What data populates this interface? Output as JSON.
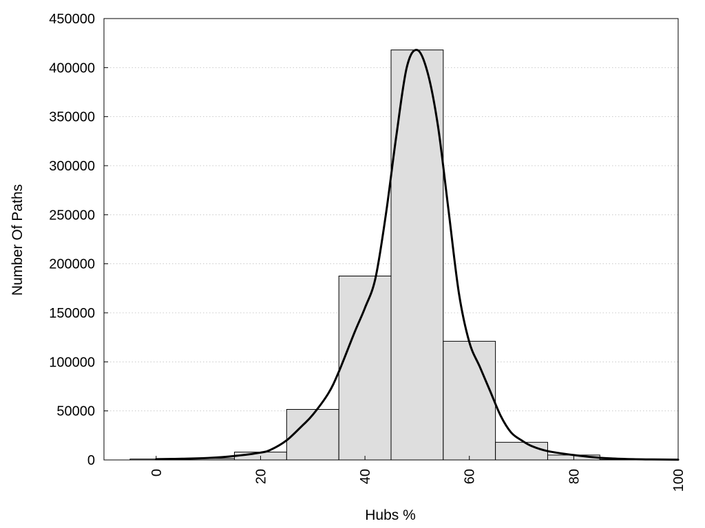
{
  "chart_data": {
    "type": "bar",
    "xlabel": "Hubs %",
    "ylabel": "Number Of Paths",
    "xlim": [
      -10,
      100
    ],
    "ylim": [
      0,
      450000
    ],
    "x_ticks": [
      0,
      20,
      40,
      60,
      80,
      100
    ],
    "y_ticks": [
      0,
      50000,
      100000,
      150000,
      200000,
      250000,
      300000,
      350000,
      400000,
      450000
    ],
    "grid": "horizontal dotted",
    "bar_fill": "#dedede",
    "bar_edge": "#000000",
    "line_color": "#000000",
    "bins": [
      {
        "from": -5,
        "to": 5,
        "value": 900
      },
      {
        "from": 5,
        "to": 15,
        "value": 1500
      },
      {
        "from": 15,
        "to": 25,
        "value": 8000
      },
      {
        "from": 25,
        "to": 35,
        "value": 51500
      },
      {
        "from": 35,
        "to": 45,
        "value": 187500
      },
      {
        "from": 45,
        "to": 55,
        "value": 418000
      },
      {
        "from": 55,
        "to": 65,
        "value": 121000
      },
      {
        "from": 65,
        "to": 75,
        "value": 18000
      },
      {
        "from": 75,
        "to": 85,
        "value": 5000
      },
      {
        "from": 85,
        "to": 95,
        "value": 500
      }
    ],
    "curve": {
      "x": [
        0,
        5,
        10,
        15,
        20,
        22,
        25,
        28,
        30,
        33,
        35,
        38,
        40,
        42,
        44,
        46,
        48,
        50,
        52,
        54,
        56,
        58,
        60,
        62,
        64,
        66,
        68,
        70,
        72,
        75,
        80,
        85,
        90,
        95,
        100
      ],
      "y": [
        800,
        1200,
        2000,
        4000,
        7500,
        10500,
        20000,
        35000,
        46000,
        68000,
        90000,
        130000,
        155000,
        185000,
        250000,
        330000,
        400000,
        418000,
        395000,
        340000,
        255000,
        170000,
        120000,
        95000,
        70000,
        45000,
        28000,
        20000,
        14000,
        9000,
        5000,
        2200,
        1000,
        500,
        300
      ]
    }
  }
}
